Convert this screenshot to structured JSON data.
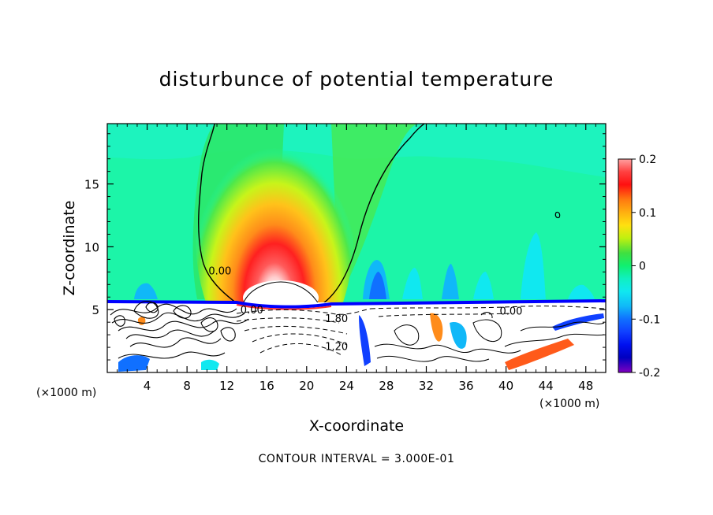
{
  "chart_data": {
    "type": "heatmap",
    "title": "disturbunce of potential temperature",
    "xlabel": "X-coordinate",
    "ylabel": "Z-coordinate",
    "x_unit": "(×1000 m)",
    "xlim": [
      0,
      50
    ],
    "ylim": [
      0,
      19.8
    ],
    "x_ticks": [
      "4",
      "8",
      "12",
      "16",
      "20",
      "24",
      "28",
      "32",
      "36",
      "40",
      "44",
      "48"
    ],
    "y_ticks": [
      "5",
      "10",
      "15"
    ],
    "colorbar": {
      "range": [
        -0.2,
        0.2
      ],
      "tick_labels": [
        "0.2",
        "0.1",
        "0",
        "-0.1",
        "-0.2"
      ]
    },
    "contour_labels": [
      {
        "text": "0.00",
        "x": 14.5,
        "y": 4.7
      },
      {
        "text": "0.00",
        "x": 11.3,
        "y": 7.8
      },
      {
        "text": "1.80",
        "x": 23,
        "y": 4.0
      },
      {
        "text": "1.20",
        "x": 23,
        "y": 1.8
      },
      {
        "text": "0.00",
        "x": 40.5,
        "y": 4.6
      }
    ],
    "annotation": "CONTOUR INTERVAL = 3.000E-01"
  },
  "colors": {
    "background_field": "#1cf5a8",
    "warm_core": "#ffffff",
    "cold_layer": "#0000ff"
  }
}
